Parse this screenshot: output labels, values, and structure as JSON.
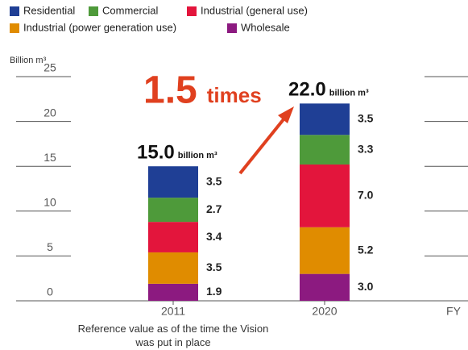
{
  "chart_data": {
    "type": "stacked_bar",
    "y_axis_label": "Billion m³",
    "x_axis_label": "FY",
    "categories": [
      "2011",
      "2020"
    ],
    "category_note": "Reference value as of the time the Vision was put in place",
    "series": [
      {
        "name": "Residential",
        "color": "#1f3f95",
        "values": [
          3.5,
          3.5
        ],
        "value_labels": [
          "3.5",
          "3.5"
        ]
      },
      {
        "name": "Commercial",
        "color": "#4e9a3a",
        "values": [
          2.7,
          3.3
        ],
        "value_labels": [
          "2.7",
          "3.3"
        ]
      },
      {
        "name": "Industrial (general use)",
        "color": "#e3153c",
        "values": [
          3.4,
          7.0
        ],
        "value_labels": [
          "3.4",
          "7.0"
        ]
      },
      {
        "name": "Industrial (power generation use)",
        "color": "#e08c00",
        "values": [
          3.5,
          5.2
        ],
        "value_labels": [
          "3.5",
          "5.2"
        ]
      },
      {
        "name": "Wholesale",
        "color": "#8c1a80",
        "values": [
          1.9,
          3.0
        ],
        "value_labels": [
          "1.9",
          "3.0"
        ]
      }
    ],
    "totals": [
      15.0,
      22.0
    ],
    "total_labels": [
      "15.0",
      "22.0"
    ],
    "total_unit": "billion m³",
    "ratio": "1.5",
    "ratio_unit": "times",
    "annotation_color": "#e0401f",
    "ylim": [
      0,
      25
    ],
    "yticks": [
      0,
      5,
      10,
      15,
      20,
      25
    ]
  }
}
